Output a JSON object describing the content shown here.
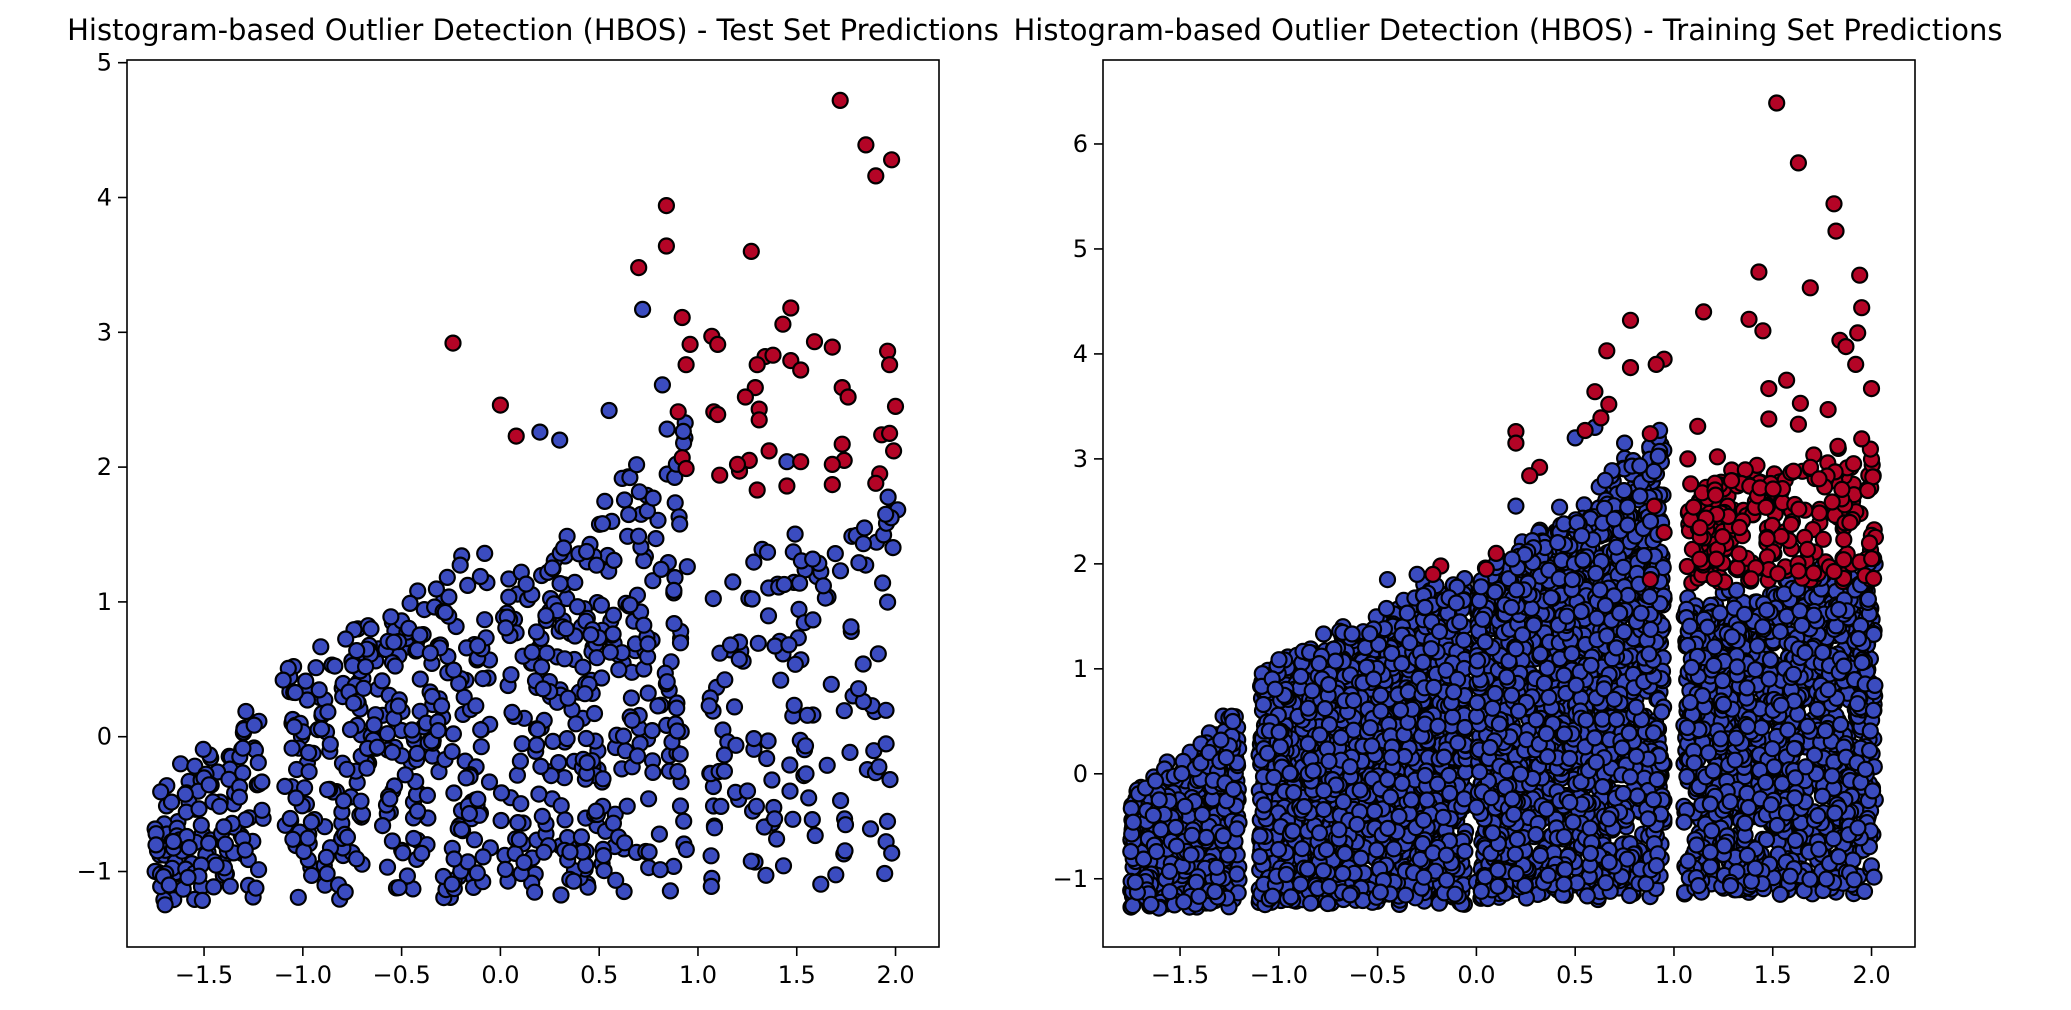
{
  "colors": {
    "inlier": "#3b4cc0",
    "outlier": "#b40426"
  },
  "chart_data": [
    {
      "type": "scatter",
      "title": "Histogram-based Outlier Detection (HBOS) - Test Set Predictions",
      "xlabel": "",
      "ylabel": "",
      "xlim": [
        -1.89,
        2.22
      ],
      "ylim": [
        -1.56,
        5.02
      ],
      "xticks": [
        -1.5,
        -1.0,
        -0.5,
        0.0,
        0.5,
        1.0,
        1.5,
        2.0
      ],
      "yticks": [
        -1,
        0,
        1,
        2,
        3,
        4,
        5
      ],
      "xtick_labels": [
        "−1.5",
        "−1.0",
        "−0.5",
        "0.0",
        "0.5",
        "1.0",
        "1.5",
        "2.0"
      ],
      "ytick_labels": [
        "−1",
        "0",
        "1",
        "2",
        "3",
        "4",
        "5"
      ],
      "grid": false,
      "legend": "none",
      "series": [
        {
          "color_role": "inlier",
          "clusters": [
            {
              "xmin": -1.75,
              "xmax": -1.2,
              "ymin": -1.25,
              "ylo_top": -0.5,
              "yhi_top": 0.25,
              "n": 140
            },
            {
              "xmin": -1.1,
              "xmax": -0.05,
              "ymin": -1.22,
              "ylo_top": 0.5,
              "yhi_top": 1.35,
              "n": 330
            },
            {
              "xmin": 0.0,
              "xmax": 0.95,
              "ymin": -1.18,
              "ylo_top": 1.0,
              "yhi_top": 2.4,
              "n": 330
            },
            {
              "xmin": 1.05,
              "xmax": 2.02,
              "ymin": -1.15,
              "ylo_top": 1.2,
              "yhi_top": 1.8,
              "n": 150
            }
          ],
          "points": [
            [
              0.72,
              3.17
            ],
            [
              0.82,
              2.61
            ],
            [
              0.55,
              2.42
            ],
            [
              0.3,
              2.2
            ],
            [
              0.2,
              2.26
            ],
            [
              1.45,
              2.04
            ],
            [
              1.95,
              1.65
            ]
          ]
        },
        {
          "color_role": "outlier",
          "points": [
            [
              1.72,
              4.72
            ],
            [
              1.85,
              4.39
            ],
            [
              1.98,
              4.28
            ],
            [
              1.9,
              4.16
            ],
            [
              0.84,
              3.94
            ],
            [
              0.84,
              3.64
            ],
            [
              0.7,
              3.48
            ],
            [
              1.27,
              3.6
            ],
            [
              1.47,
              3.18
            ],
            [
              0.92,
              3.11
            ],
            [
              1.43,
              3.06
            ],
            [
              1.07,
              2.97
            ],
            [
              1.59,
              2.93
            ],
            [
              -0.24,
              2.92
            ],
            [
              1.1,
              2.91
            ],
            [
              0.96,
              2.91
            ],
            [
              1.68,
              2.89
            ],
            [
              1.96,
              2.86
            ],
            [
              1.34,
              2.82
            ],
            [
              1.38,
              2.83
            ],
            [
              1.3,
              2.76
            ],
            [
              0.94,
              2.76
            ],
            [
              1.97,
              2.76
            ],
            [
              1.47,
              2.79
            ],
            [
              1.52,
              2.72
            ],
            [
              1.73,
              2.59
            ],
            [
              1.29,
              2.59
            ],
            [
              1.76,
              2.52
            ],
            [
              1.24,
              2.52
            ],
            [
              1.31,
              2.43
            ],
            [
              2.0,
              2.45
            ],
            [
              1.08,
              2.41
            ],
            [
              0.9,
              2.41
            ],
            [
              1.1,
              2.39
            ],
            [
              1.31,
              2.35
            ],
            [
              0.0,
              2.46
            ],
            [
              0.08,
              2.23
            ],
            [
              1.93,
              2.24
            ],
            [
              1.97,
              2.25
            ],
            [
              1.73,
              2.17
            ],
            [
              1.36,
              2.12
            ],
            [
              1.26,
              2.05
            ],
            [
              1.74,
              2.05
            ],
            [
              1.99,
              2.12
            ],
            [
              1.52,
              2.04
            ],
            [
              0.92,
              2.07
            ],
            [
              1.68,
              2.02
            ],
            [
              1.21,
              1.97
            ],
            [
              0.94,
              1.99
            ],
            [
              1.92,
              1.95
            ],
            [
              1.11,
              1.94
            ],
            [
              1.9,
              1.88
            ],
            [
              1.68,
              1.87
            ],
            [
              1.45,
              1.86
            ],
            [
              1.3,
              1.83
            ],
            [
              1.2,
              2.02
            ]
          ]
        }
      ]
    },
    {
      "type": "scatter",
      "title": "Histogram-based Outlier Detection (HBOS) - Training Set Predictions",
      "xlabel": "",
      "ylabel": "",
      "xlim": [
        -1.89,
        2.22
      ],
      "ylim": [
        -1.65,
        6.8
      ],
      "xticks": [
        -1.5,
        -1.0,
        -0.5,
        0.0,
        0.5,
        1.0,
        1.5,
        2.0
      ],
      "yticks": [
        -1,
        0,
        1,
        2,
        3,
        4,
        5,
        6
      ],
      "xtick_labels": [
        "−1.5",
        "−1.0",
        "−0.5",
        "0.0",
        "0.5",
        "1.0",
        "1.5",
        "2.0"
      ],
      "ytick_labels": [
        "−1",
        "0",
        "1",
        "2",
        "3",
        "4",
        "5",
        "6"
      ],
      "grid": false,
      "legend": "none",
      "series": [
        {
          "color_role": "inlier",
          "clusters": [
            {
              "xmin": -1.75,
              "xmax": -1.2,
              "ymin": -1.28,
              "ylo_top": -0.3,
              "yhi_top": 0.55,
              "n": 700
            },
            {
              "xmin": -1.1,
              "xmax": -0.05,
              "ymin": -1.25,
              "ylo_top": 0.9,
              "yhi_top": 1.9,
              "n": 1800
            },
            {
              "xmin": 0.0,
              "xmax": 0.95,
              "ymin": -1.2,
              "ylo_top": 1.8,
              "yhi_top": 3.2,
              "n": 2000
            },
            {
              "xmin": 1.05,
              "xmax": 2.02,
              "ymin": -1.15,
              "ylo_top": 1.6,
              "yhi_top": 2.0,
              "n": 1400
            }
          ],
          "points": [
            [
              0.6,
              3.3
            ],
            [
              0.5,
              3.2
            ],
            [
              0.2,
              2.55
            ],
            [
              -0.3,
              1.9
            ],
            [
              -0.45,
              1.85
            ],
            [
              0.75,
              3.15
            ]
          ]
        },
        {
          "color_role": "outlier",
          "points": [
            [
              1.52,
              6.39
            ],
            [
              1.63,
              5.82
            ],
            [
              1.81,
              5.43
            ],
            [
              1.82,
              5.17
            ],
            [
              1.43,
              4.78
            ],
            [
              1.94,
              4.75
            ],
            [
              1.69,
              4.63
            ],
            [
              1.95,
              4.44
            ],
            [
              1.15,
              4.4
            ],
            [
              1.38,
              4.33
            ],
            [
              0.78,
              4.32
            ],
            [
              1.45,
              4.22
            ],
            [
              1.93,
              4.2
            ],
            [
              1.84,
              4.13
            ],
            [
              0.66,
              4.03
            ],
            [
              1.87,
              4.07
            ],
            [
              0.95,
              3.95
            ],
            [
              0.91,
              3.9
            ],
            [
              0.78,
              3.87
            ],
            [
              1.92,
              3.9
            ],
            [
              1.57,
              3.75
            ],
            [
              1.48,
              3.67
            ],
            [
              2.0,
              3.67
            ],
            [
              0.6,
              3.64
            ],
            [
              1.64,
              3.53
            ],
            [
              1.78,
              3.47
            ],
            [
              0.67,
              3.52
            ],
            [
              1.48,
              3.38
            ],
            [
              0.63,
              3.39
            ],
            [
              1.63,
              3.33
            ],
            [
              0.55,
              3.27
            ],
            [
              1.12,
              3.31
            ],
            [
              0.2,
              3.26
            ],
            [
              0.88,
              3.24
            ],
            [
              1.83,
              3.12
            ],
            [
              1.95,
              3.19
            ],
            [
              1.07,
              3.0
            ],
            [
              0.2,
              3.15
            ],
            [
              0.32,
              2.92
            ],
            [
              0.27,
              2.84
            ],
            [
              1.22,
              3.02
            ],
            [
              0.1,
              2.1
            ],
            [
              0.05,
              1.95
            ],
            [
              -0.18,
              1.98
            ],
            [
              -0.22,
              1.9
            ],
            [
              0.88,
              1.85
            ],
            [
              0.95,
              2.3
            ],
            [
              0.9,
              2.55
            ]
          ],
          "clusters": [
            {
              "xmin": 1.05,
              "xmax": 2.02,
              "ymin": 1.8,
              "ylo_top": 2.7,
              "yhi_top": 3.1,
              "n": 260
            }
          ]
        }
      ]
    }
  ]
}
